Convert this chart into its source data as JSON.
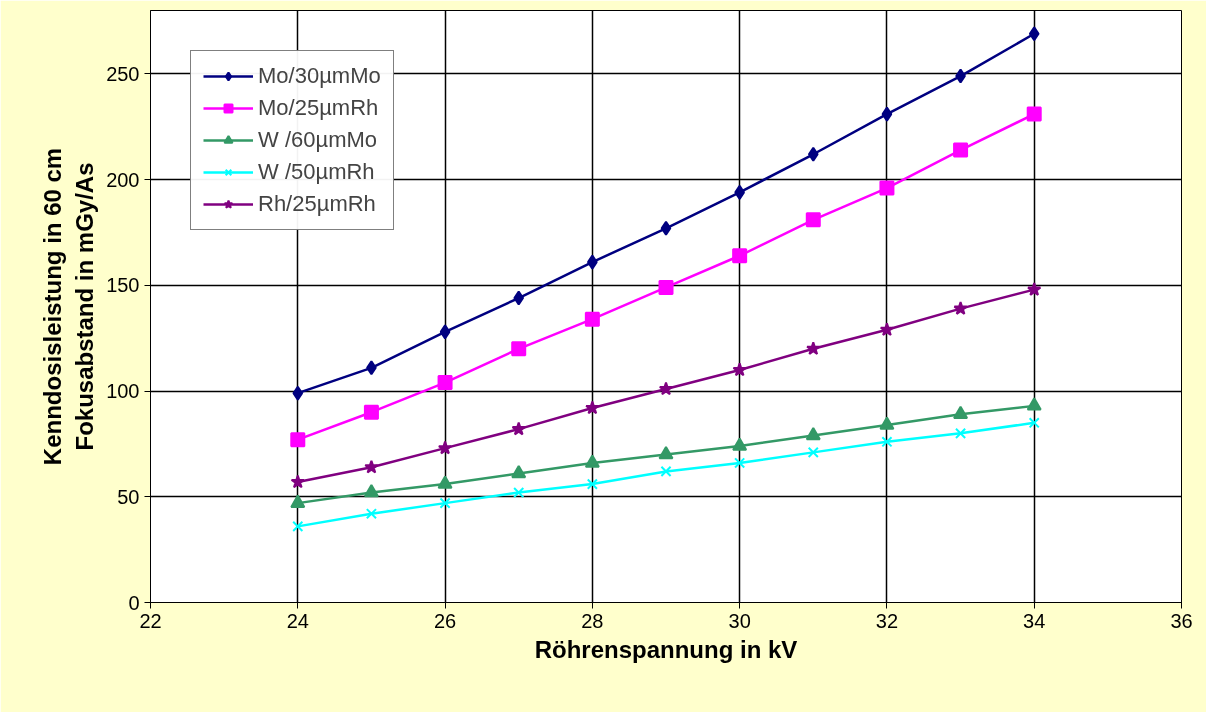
{
  "chart_data": {
    "type": "line",
    "xlabel": "Röhrenspannung in kV",
    "ylabel": "Kenndosisleistung in 60 cm\nFokusabstand in mGy/As",
    "x": [
      24,
      25,
      26,
      27,
      28,
      29,
      30,
      31,
      32,
      33,
      34
    ],
    "series": [
      {
        "name": "Mo/30µmMo",
        "color": "#000080",
        "marker": "diamond",
        "values": [
          99,
          111,
          128,
          144,
          161,
          177,
          194,
          212,
          231,
          249,
          269
        ]
      },
      {
        "name": "Mo/25µmRh",
        "color": "#ff00ff",
        "marker": "square",
        "values": [
          77,
          90,
          104,
          120,
          134,
          149,
          164,
          181,
          196,
          214,
          231
        ]
      },
      {
        "name": "W /60µmMo",
        "color": "#339966",
        "marker": "triangle",
        "values": [
          47,
          52,
          56,
          61,
          66,
          70,
          74,
          79,
          84,
          89,
          93
        ]
      },
      {
        "name": "W /50µmRh",
        "color": "#00ffff",
        "marker": "cross",
        "values": [
          36,
          42,
          47,
          52,
          56,
          62,
          66,
          71,
          76,
          80,
          85
        ]
      },
      {
        "name": "Rh/25µmRh",
        "color": "#800080",
        "marker": "star",
        "values": [
          57,
          64,
          73,
          82,
          92,
          101,
          110,
          120,
          129,
          139,
          148
        ]
      }
    ],
    "xlim": [
      22,
      36
    ],
    "xticks": [
      22,
      24,
      26,
      28,
      30,
      32,
      34,
      36
    ],
    "ylim": [
      0,
      280
    ],
    "yticks": [
      0,
      50,
      100,
      150,
      200,
      250
    ],
    "grid": true,
    "legend": "top left",
    "line_style": "solid"
  }
}
